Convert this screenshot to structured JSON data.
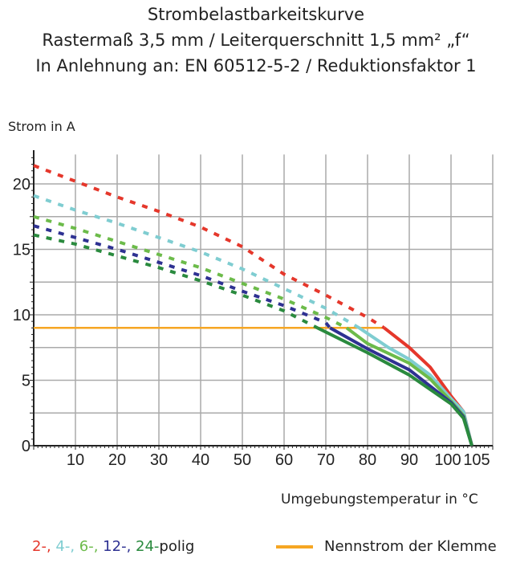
{
  "header": {
    "title": "Strombelastbarkeitskurve",
    "subtitle1": "Rastermaß 3,5 mm / Leiterquerschnitt 1,5 mm² „f“",
    "subtitle2": "In Anlehnung an: EN 60512-5-2 / Reduktionsfaktor 1"
  },
  "chart_data": {
    "type": "line",
    "ylabel": "Strom in A",
    "xlabel": "Umgebungstemperatur in °C",
    "xlim": [
      0,
      110
    ],
    "ylim": [
      0,
      22
    ],
    "x_ticks": [
      "10",
      "20",
      "30",
      "40",
      "50",
      "60",
      "70",
      "80",
      "90",
      "100",
      "105"
    ],
    "x_tick_values": [
      10,
      20,
      30,
      40,
      50,
      60,
      70,
      80,
      90,
      100,
      105
    ],
    "y_ticks": [
      "0",
      "5",
      "10",
      "15",
      "20"
    ],
    "y_tick_values": [
      0,
      5,
      10,
      15,
      20
    ],
    "grid": true,
    "series": [
      {
        "name": "2-",
        "color": "#e5372b",
        "dotted": [
          [
            0,
            21.4
          ],
          [
            10,
            20.2
          ],
          [
            20,
            19.0
          ],
          [
            30,
            17.9
          ],
          [
            40,
            16.7
          ],
          [
            50,
            15.2
          ],
          [
            60,
            13.1
          ],
          [
            70,
            11.5
          ],
          [
            80,
            9.8
          ],
          [
            84,
            9.0
          ]
        ],
        "solid": [
          [
            84,
            9.0
          ],
          [
            90,
            7.5
          ],
          [
            95,
            6.0
          ],
          [
            100,
            3.8
          ],
          [
            103,
            2.6
          ],
          [
            105,
            0
          ]
        ]
      },
      {
        "name": "4-",
        "color": "#7fcdd1",
        "dotted": [
          [
            0,
            19.1
          ],
          [
            10,
            18.0
          ],
          [
            20,
            17.0
          ],
          [
            30,
            15.9
          ],
          [
            40,
            14.8
          ],
          [
            50,
            13.5
          ],
          [
            60,
            12.0
          ],
          [
            70,
            10.5
          ],
          [
            78,
            9.0
          ]
        ],
        "solid": [
          [
            78,
            9.0
          ],
          [
            85,
            7.5
          ],
          [
            90,
            6.6
          ],
          [
            95,
            5.4
          ],
          [
            100,
            3.6
          ],
          [
            103,
            2.6
          ],
          [
            105,
            0
          ]
        ]
      },
      {
        "name": "6-",
        "color": "#6cbb4a",
        "dotted": [
          [
            0,
            17.5
          ],
          [
            10,
            16.6
          ],
          [
            20,
            15.6
          ],
          [
            30,
            14.6
          ],
          [
            40,
            13.6
          ],
          [
            50,
            12.4
          ],
          [
            60,
            11.2
          ],
          [
            70,
            9.8
          ],
          [
            75,
            9.0
          ]
        ],
        "solid": [
          [
            75,
            9.0
          ],
          [
            80,
            7.8
          ],
          [
            90,
            6.3
          ],
          [
            95,
            5.1
          ],
          [
            100,
            3.4
          ],
          [
            103,
            2.3
          ],
          [
            105,
            0
          ]
        ]
      },
      {
        "name": "12-",
        "color": "#2e3192",
        "dotted": [
          [
            0,
            16.8
          ],
          [
            10,
            15.9
          ],
          [
            20,
            15.0
          ],
          [
            30,
            14.0
          ],
          [
            40,
            13.0
          ],
          [
            50,
            11.8
          ],
          [
            60,
            10.7
          ],
          [
            70,
            9.4
          ],
          [
            71,
            9.0
          ]
        ],
        "solid": [
          [
            71,
            9.0
          ],
          [
            80,
            7.4
          ],
          [
            90,
            5.8
          ],
          [
            100,
            3.3
          ],
          [
            103,
            2.2
          ],
          [
            105,
            0
          ]
        ]
      },
      {
        "name": "24-",
        "color": "#2a8a3e",
        "dotted": [
          [
            0,
            16.1
          ],
          [
            10,
            15.4
          ],
          [
            20,
            14.5
          ],
          [
            30,
            13.6
          ],
          [
            40,
            12.6
          ],
          [
            50,
            11.5
          ],
          [
            60,
            10.3
          ],
          [
            68,
            9.0
          ]
        ],
        "solid": [
          [
            68,
            9.0
          ],
          [
            80,
            7.1
          ],
          [
            90,
            5.4
          ],
          [
            100,
            3.2
          ],
          [
            103,
            2.1
          ],
          [
            105,
            0
          ]
        ]
      }
    ],
    "reference": {
      "name": "Nennstrom der Klemme",
      "color": "#f6a623",
      "y": 9,
      "x_range": [
        0,
        84
      ]
    },
    "legend": {
      "suffix": "polig",
      "placement": "bottom"
    }
  }
}
